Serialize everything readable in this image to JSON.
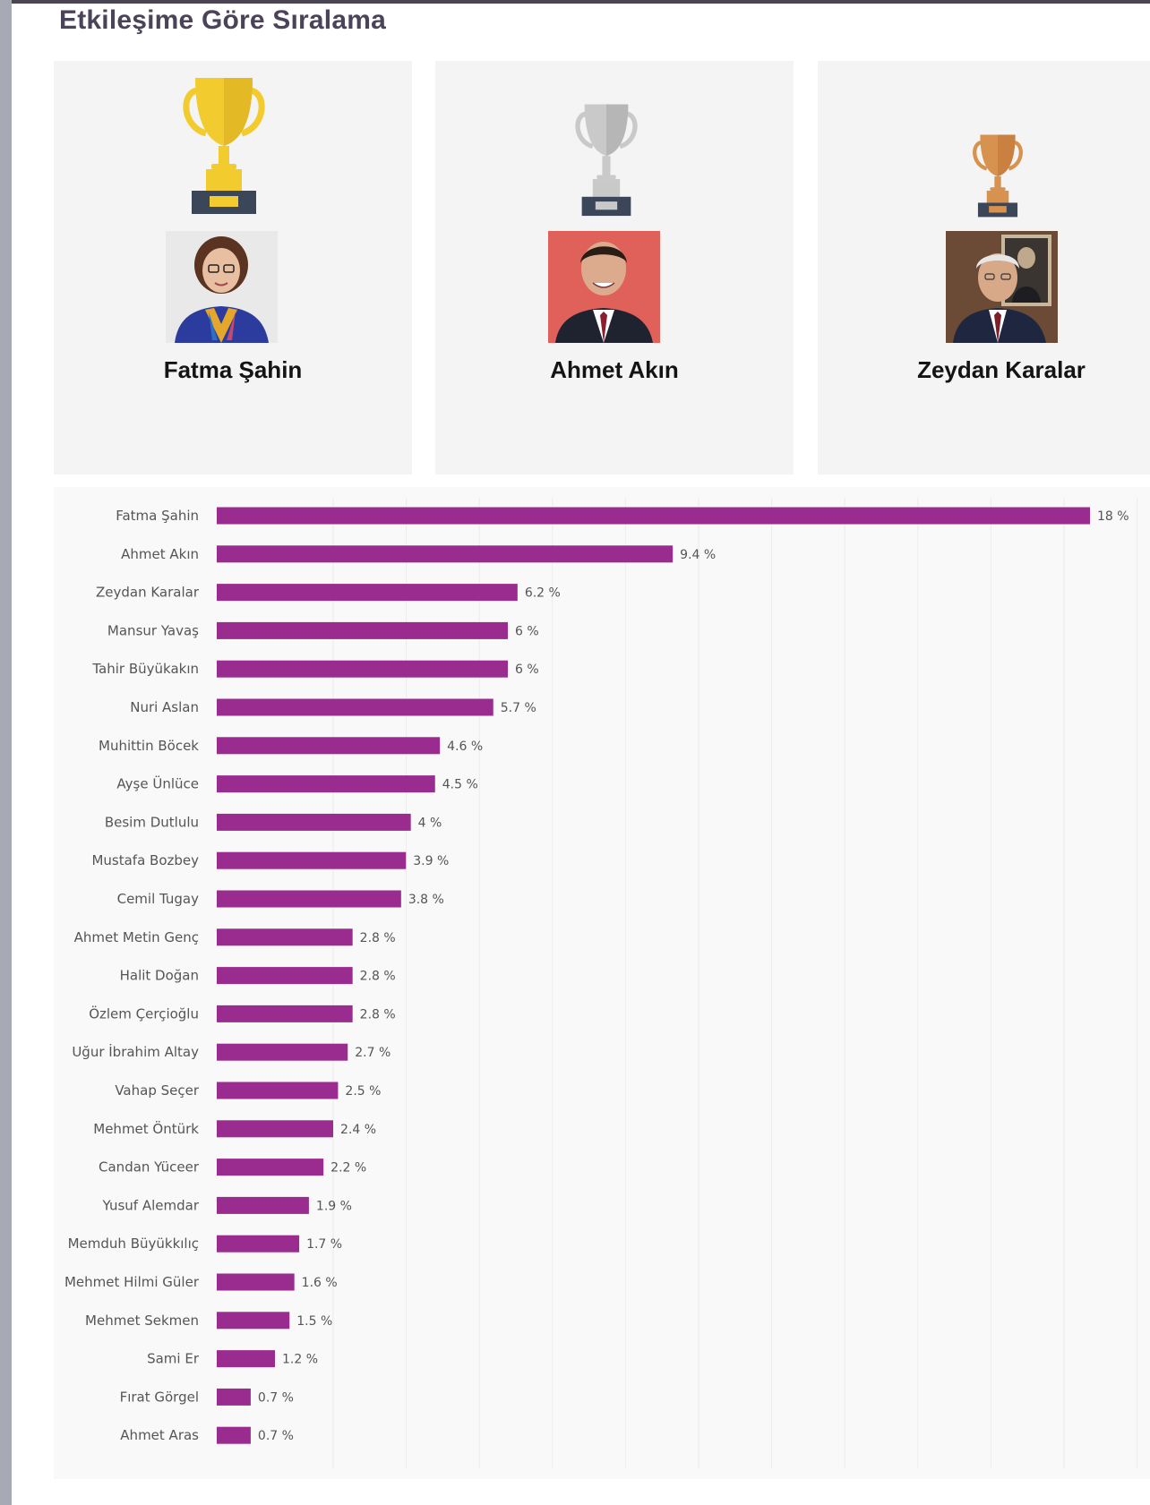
{
  "title": "Etkileşime Göre Sıralama",
  "podium": [
    {
      "rank": 1,
      "name": "Fatma Şahin",
      "trophy_icon": "gold-trophy-icon",
      "trophy_color": "#f2cc2f"
    },
    {
      "rank": 2,
      "name": "Ahmet Akın",
      "trophy_icon": "silver-trophy-icon",
      "trophy_color": "#c9c9c9"
    },
    {
      "rank": 3,
      "name": "Zeydan Karalar",
      "trophy_icon": "bronze-trophy-icon",
      "trophy_color": "#d8924f"
    }
  ],
  "chart_data": {
    "type": "bar",
    "orientation": "horizontal",
    "bar_color": "#9b2c8f",
    "value_suffix": " %",
    "categories": [
      "Fatma Şahin",
      "Ahmet Akın",
      "Zeydan Karalar",
      "Mansur Yavaş",
      "Tahir Büyükakın",
      "Nuri Aslan",
      "Muhittin Böcek",
      "Ayşe Ünlüce",
      "Besim Dutlulu",
      "Mustafa Bozbey",
      "Cemil Tugay",
      "Ahmet Metin Genç",
      "Halit Doğan",
      "Özlem Çerçioğlu",
      "Uğur İbrahim Altay",
      "Vahap Seçer",
      "Mehmet Öntürk",
      "Candan Yüceer",
      "Yusuf Alemdar",
      "Memduh Büyükkılıç",
      "Mehmet Hilmi Güler",
      "Mehmet Sekmen",
      "Sami Er",
      "Fırat Görgel",
      "Ahmet Aras"
    ],
    "values": [
      18,
      9.4,
      6.2,
      6,
      6,
      5.7,
      4.6,
      4.5,
      4,
      3.9,
      3.8,
      2.8,
      2.8,
      2.8,
      2.7,
      2.5,
      2.4,
      2.2,
      1.9,
      1.7,
      1.6,
      1.5,
      1.2,
      0.7,
      0.7
    ],
    "xlim": [
      0,
      18
    ],
    "grid": true,
    "legend": "none"
  }
}
